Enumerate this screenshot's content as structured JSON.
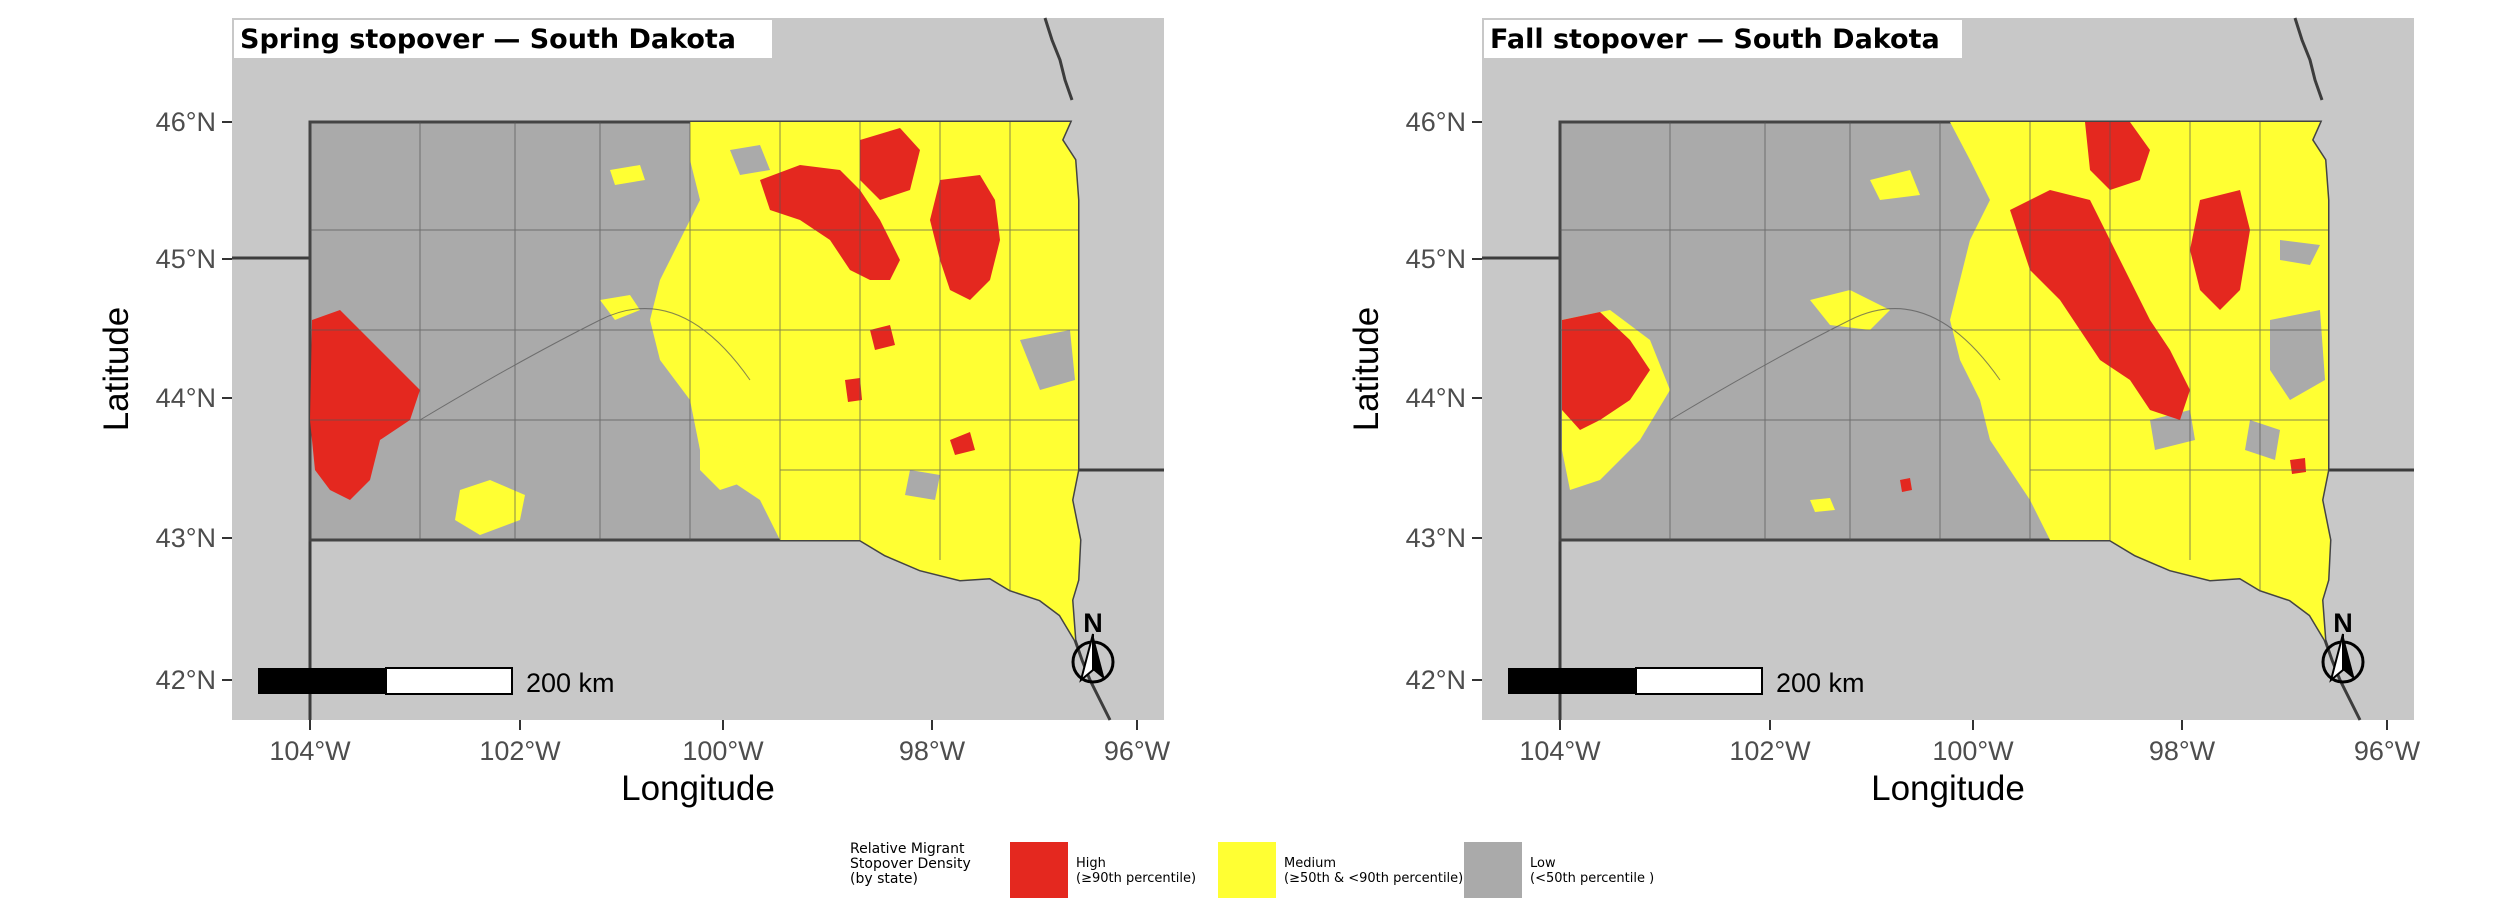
{
  "panels": [
    {
      "title": "Spring stopover — South Dakota"
    },
    {
      "title": "Fall stopover — South Dakota"
    }
  ],
  "axes": {
    "xlabel": "Longitude",
    "ylabel": "Latitude",
    "x_ticks": [
      "104°W",
      "102°W",
      "100°W",
      "98°W",
      "96°W"
    ],
    "y_ticks": [
      "46°N",
      "45°N",
      "44°N",
      "43°N",
      "42°N"
    ]
  },
  "scale_bar": {
    "label": "200 km"
  },
  "north_arrow": {
    "label": "N"
  },
  "legend": {
    "title": "Relative Migrant\nStopover Density\n(by state)",
    "items": [
      {
        "label": "High\n(≥90th percentile)",
        "color": "#e4281f"
      },
      {
        "label": "Medium\n(≥50th & <90th percentile)",
        "color": "#ffff33"
      },
      {
        "label": "Low\n(<50th percentile )",
        "color": "#aaaaaa"
      }
    ]
  },
  "colors": {
    "background": "#c8c8c8",
    "high": "#e4281f",
    "medium": "#ffff33",
    "low": "#aaaaaa",
    "border": "#555555"
  }
}
